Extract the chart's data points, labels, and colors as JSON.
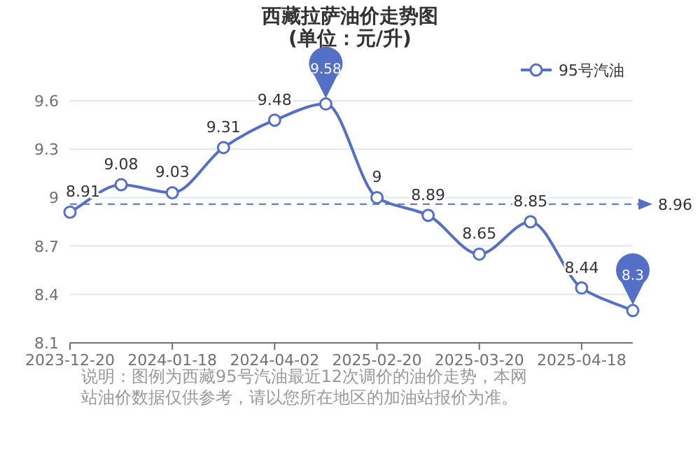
{
  "chart_data": {
    "type": "line",
    "title": "西藏拉萨油价走势图",
    "subtitle": "(单位：元/升)",
    "categories": [
      "2023-12-20",
      null,
      "2024-01-18",
      null,
      "2024-04-02",
      null,
      "2025-02-20",
      null,
      "2025-03-20",
      null,
      "2025-04-18",
      null
    ],
    "series": [
      {
        "name": "95号汽油",
        "color": "#5470c6",
        "values": [
          8.91,
          9.08,
          9.03,
          9.31,
          9.48,
          9.58,
          9,
          8.89,
          8.65,
          8.85,
          8.44,
          8.3
        ]
      }
    ],
    "ylim": [
      8.1,
      9.6
    ],
    "yticks": [
      8.1,
      8.4,
      8.7,
      9,
      9.3,
      9.6
    ],
    "ref_lines": [
      {
        "axis": "y",
        "value": 8.96,
        "label": "8.96",
        "line_style": "dashed",
        "color": "#5470c6"
      }
    ],
    "annotations": [
      "说明：图例为西藏95号汽油最近12次调价的油价走势，本网站油价数据仅供参考，请以您所在地区的加油站报价为准。"
    ],
    "data_labels": true,
    "grid": "y",
    "legend": "top right",
    "marker": "circle",
    "line_style": "solid"
  }
}
